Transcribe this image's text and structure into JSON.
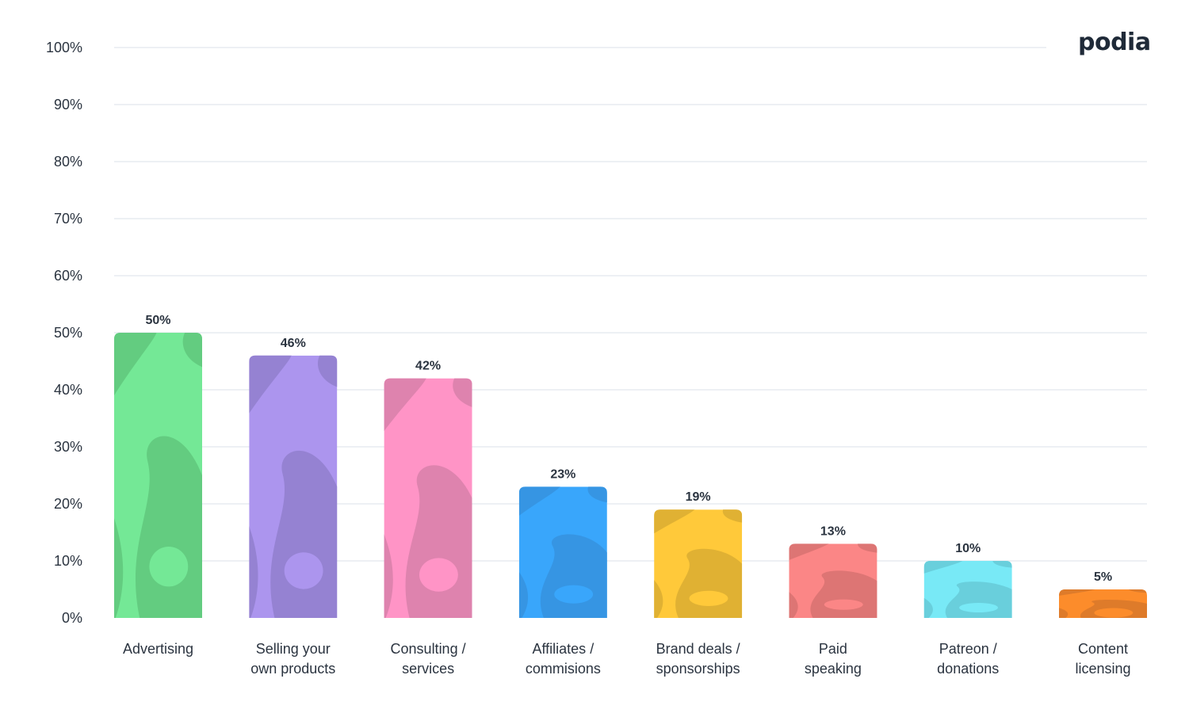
{
  "brand": {
    "logo_text": "podia"
  },
  "chart_data": {
    "type": "bar",
    "title": "",
    "xlabel": "",
    "ylabel": "",
    "ylim": [
      0,
      100
    ],
    "y_ticks": [
      "0%",
      "10%",
      "20%",
      "30%",
      "40%",
      "50%",
      "60%",
      "70%",
      "80%",
      "90%",
      "100%"
    ],
    "grid": true,
    "categories": [
      [
        "Advertising"
      ],
      [
        "Selling your",
        "own products"
      ],
      [
        "Consulting /",
        "services"
      ],
      [
        "Affiliates /",
        "commisions"
      ],
      [
        "Brand deals /",
        "sponsorships"
      ],
      [
        "Paid",
        "speaking"
      ],
      [
        "Patreon /",
        "donations"
      ],
      [
        "Content",
        "licensing"
      ]
    ],
    "values": [
      50,
      46,
      42,
      23,
      19,
      13,
      10,
      5
    ],
    "value_labels": [
      "50%",
      "46%",
      "42%",
      "23%",
      "19%",
      "13%",
      "10%",
      "5%"
    ],
    "colors": [
      "#74e896",
      "#ac95ee",
      "#ff94c6",
      "#39a6fb",
      "#ffc93a",
      "#fb8686",
      "#78e9f6",
      "#fc8c2b"
    ],
    "shade_colors": [
      "#63cc80",
      "#9582d2",
      "#de83ae",
      "#3695e3",
      "#e0b133",
      "#dd7574",
      "#69cfdc",
      "#de7b2a"
    ]
  }
}
